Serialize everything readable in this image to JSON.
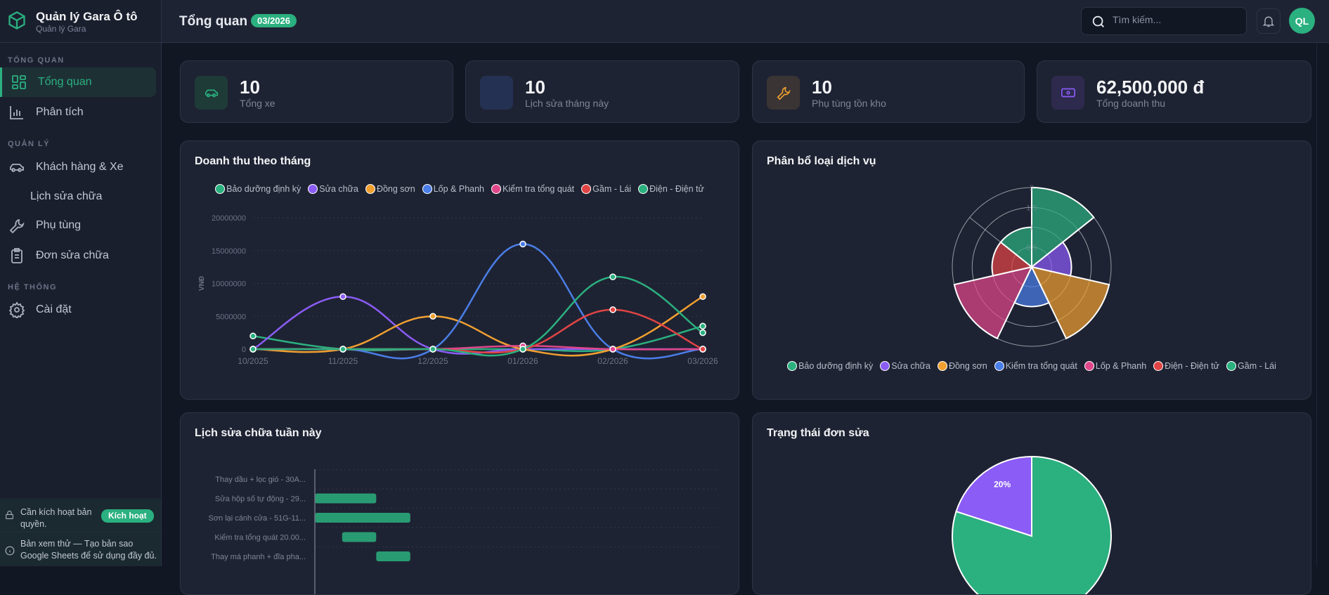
{
  "app": {
    "title": "Quản lý Gara Ô tô",
    "subtitle": "Quản lý Gara"
  },
  "sidebar": {
    "sections": [
      "TỔNG QUAN",
      "QUẢN LÝ",
      "HỆ THỐNG"
    ],
    "items": [
      {
        "label": "Tổng quan",
        "icon": "dashboard-icon",
        "active": true
      },
      {
        "label": "Phân tích",
        "icon": "bar-chart-icon"
      },
      {
        "label": "Khách hàng & Xe",
        "icon": "car-icon"
      },
      {
        "label": "Lịch sửa chữa",
        "icon": ""
      },
      {
        "label": "Phụ tùng",
        "icon": "wrench-icon"
      },
      {
        "label": "Đơn sửa chữa",
        "icon": "clipboard-icon"
      },
      {
        "label": "Cài đặt",
        "icon": "gear-icon"
      }
    ],
    "license": {
      "text": "Cần kích hoạt bản quyền.",
      "button": "Kích hoạt"
    },
    "trial": {
      "text": "Bản xem thử — Tạo bản sao Google Sheets để sử dụng đầy đủ."
    }
  },
  "header": {
    "title": "Tổng quan",
    "period": "03/2026",
    "search_placeholder": "Tìm kiếm...",
    "avatar": "QL"
  },
  "stats": [
    {
      "value": "10",
      "label": "Tổng xe",
      "icon": "car-icon",
      "color": "#2bb07f"
    },
    {
      "value": "10",
      "label": "Lịch sửa tháng này",
      "icon": "calendar-icon",
      "color": "#4a7ee8"
    },
    {
      "value": "10",
      "label": "Phụ tùng tồn kho",
      "icon": "wrench-icon",
      "color": "#f0a030"
    },
    {
      "value": "62,500,000 đ",
      "label": "Tổng doanh thu",
      "icon": "money-icon",
      "color": "#8b5cf6"
    }
  ],
  "chart_data": [
    {
      "type": "line",
      "title": "Doanh thu theo tháng",
      "ylabel": "VNĐ",
      "ylim": [
        0,
        20000000
      ],
      "yticks": [
        "0",
        "5000000",
        "10000000",
        "15000000",
        "20000000"
      ],
      "categories": [
        "10/2025",
        "11/2025",
        "12/2025",
        "01/2026",
        "02/2026",
        "03/2026"
      ],
      "legend": "top",
      "grid": true,
      "series": [
        {
          "name": "Bảo dưỡng định kỳ",
          "color": "#2bb07f",
          "values": [
            2000000,
            0,
            0,
            0,
            0,
            3500000
          ]
        },
        {
          "name": "Sửa chữa",
          "color": "#8b5cf6",
          "values": [
            0,
            8000000,
            0,
            0,
            0,
            0
          ]
        },
        {
          "name": "Đồng sơn",
          "color": "#f0a030",
          "values": [
            0,
            0,
            5000000,
            0,
            0,
            8000000
          ]
        },
        {
          "name": "Lốp & Phanh",
          "color": "#4a7ee8",
          "values": [
            0,
            0,
            0,
            16000000,
            0,
            0
          ]
        },
        {
          "name": "Kiểm tra tổng quát",
          "color": "#e0468a",
          "values": [
            0,
            0,
            0,
            500000,
            0,
            0
          ]
        },
        {
          "name": "Gầm - Lái",
          "color": "#e04444",
          "values": [
            0,
            0,
            0,
            0,
            6000000,
            0
          ]
        },
        {
          "name": "Điện - Điện tử",
          "color": "#2bb07f",
          "values": [
            0,
            0,
            0,
            0,
            11000000,
            2500000
          ]
        }
      ]
    },
    {
      "type": "polarArea",
      "title": "Phân bổ loại dịch vụ",
      "rlim": [
        0,
        2
      ],
      "rticks": [
        "0.5",
        "1",
        "1.5",
        "2"
      ],
      "legend": "bottom",
      "categories": [
        "Bảo dưỡng định kỳ",
        "Sửa chữa",
        "Đồng sơn",
        "Kiểm tra tổng quát",
        "Lốp & Phanh",
        "Điện - Điện tử",
        "Gầm - Lái"
      ],
      "values": [
        2,
        1,
        2,
        1,
        2,
        1,
        1
      ],
      "colors": [
        "#2bb07f",
        "#8b5cf6",
        "#f0a030",
        "#4a7ee8",
        "#e0468a",
        "#e04444",
        "#2bb07f"
      ]
    },
    {
      "type": "bar",
      "orientation": "horizontal-range",
      "title": "Lịch sửa chữa tuần này",
      "categories": [
        "Thay dầu + lọc gió - 30A...",
        "Sửa hộp số tự động - 29...",
        "Sơn lại cánh cửa - 51G-11...",
        "Kiểm tra tổng quát 20.00...",
        "Thay má phanh + đĩa pha..."
      ],
      "ranges": [
        null,
        [
          0,
          1.8
        ],
        [
          0,
          2.8
        ],
        [
          0.8,
          1.8
        ],
        [
          1.8,
          2.8
        ]
      ],
      "color": "#2bb07f"
    },
    {
      "type": "pie",
      "title": "Trạng thái đơn sửa",
      "values": [
        80,
        20
      ],
      "colors": [
        "#2bb07f",
        "#8b5cf6"
      ],
      "labels_shown": [
        "",
        "20%"
      ]
    }
  ]
}
